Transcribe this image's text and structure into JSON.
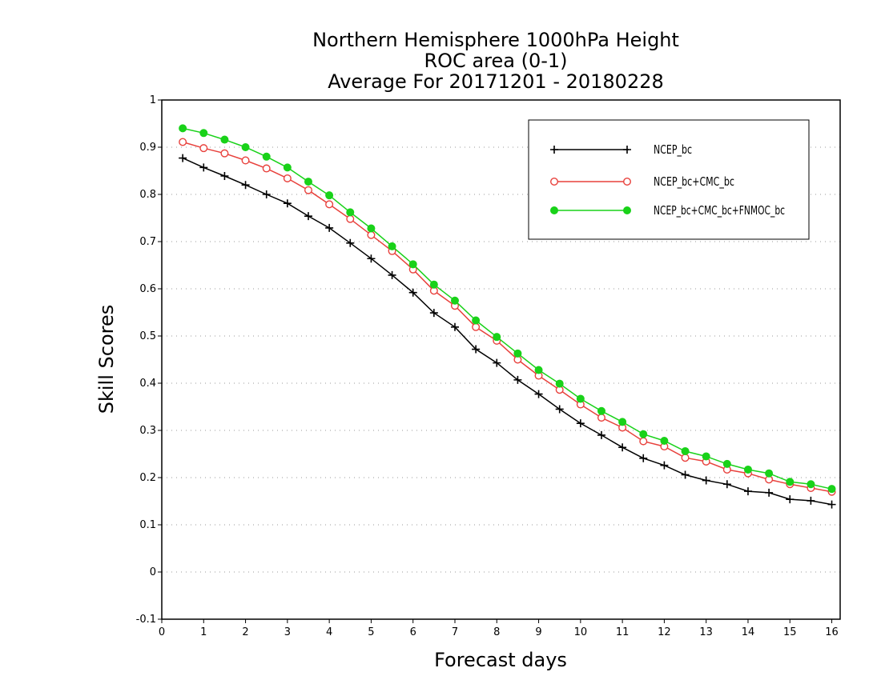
{
  "chart_data": {
    "type": "line",
    "title": [
      "Northern Hemisphere 1000hPa Height",
      "ROC area (0-1)",
      "Average For 20171201 - 20180228"
    ],
    "xlabel": "Forecast days",
    "ylabel": "Skill Scores",
    "xlim": [
      0,
      16.2
    ],
    "ylim": [
      -0.1,
      1
    ],
    "xticks": [
      0,
      1,
      2,
      3,
      4,
      5,
      6,
      7,
      8,
      9,
      10,
      11,
      12,
      13,
      14,
      15,
      16
    ],
    "yticks": [
      -0.1,
      0,
      0.1,
      0.2,
      0.3,
      0.4,
      0.5,
      0.6,
      0.7,
      0.8,
      0.9,
      1
    ],
    "ytick_labels": [
      "-0.1",
      "0",
      "0.1",
      "0.2",
      "0.3",
      "0.4",
      "0.5",
      "0.6",
      "0.7",
      "0.8",
      "0.9",
      "1"
    ],
    "grid": "horizontal dotted",
    "legend_position": "top-right",
    "x": [
      0.5,
      1,
      1.5,
      2,
      2.5,
      3,
      3.5,
      4,
      4.5,
      5,
      5.5,
      6,
      6.5,
      7,
      7.5,
      8,
      8.5,
      9,
      9.5,
      10,
      10.5,
      11,
      11.5,
      12,
      12.5,
      13,
      13.5,
      14,
      14.5,
      15,
      15.5,
      16
    ],
    "series": [
      {
        "name": "NCEP_bc",
        "color": "#000000",
        "marker": "plus",
        "values": [
          0.877,
          0.857,
          0.839,
          0.82,
          0.8,
          0.781,
          0.754,
          0.729,
          0.697,
          0.664,
          0.629,
          0.592,
          0.549,
          0.519,
          0.472,
          0.443,
          0.407,
          0.377,
          0.345,
          0.315,
          0.29,
          0.264,
          0.241,
          0.226,
          0.206,
          0.194,
          0.186,
          0.171,
          0.168,
          0.154,
          0.151,
          0.143
        ]
      },
      {
        "name": "NCEP_bc+CMC_bc",
        "color": "#e8413c",
        "marker": "open-circle",
        "values": [
          0.911,
          0.898,
          0.887,
          0.872,
          0.855,
          0.834,
          0.809,
          0.779,
          0.748,
          0.714,
          0.68,
          0.641,
          0.596,
          0.564,
          0.519,
          0.49,
          0.45,
          0.416,
          0.386,
          0.355,
          0.327,
          0.306,
          0.277,
          0.266,
          0.242,
          0.234,
          0.217,
          0.209,
          0.196,
          0.186,
          0.178,
          0.17
        ]
      },
      {
        "name": "NCEP_bc+CMC_bc+FNMOC_bc",
        "color": "#19d219",
        "marker": "filled-circle",
        "values": [
          0.94,
          0.93,
          0.916,
          0.9,
          0.88,
          0.857,
          0.827,
          0.798,
          0.762,
          0.728,
          0.69,
          0.652,
          0.609,
          0.575,
          0.533,
          0.498,
          0.463,
          0.428,
          0.399,
          0.367,
          0.341,
          0.318,
          0.292,
          0.278,
          0.256,
          0.245,
          0.229,
          0.217,
          0.209,
          0.191,
          0.186,
          0.176
        ]
      }
    ]
  }
}
